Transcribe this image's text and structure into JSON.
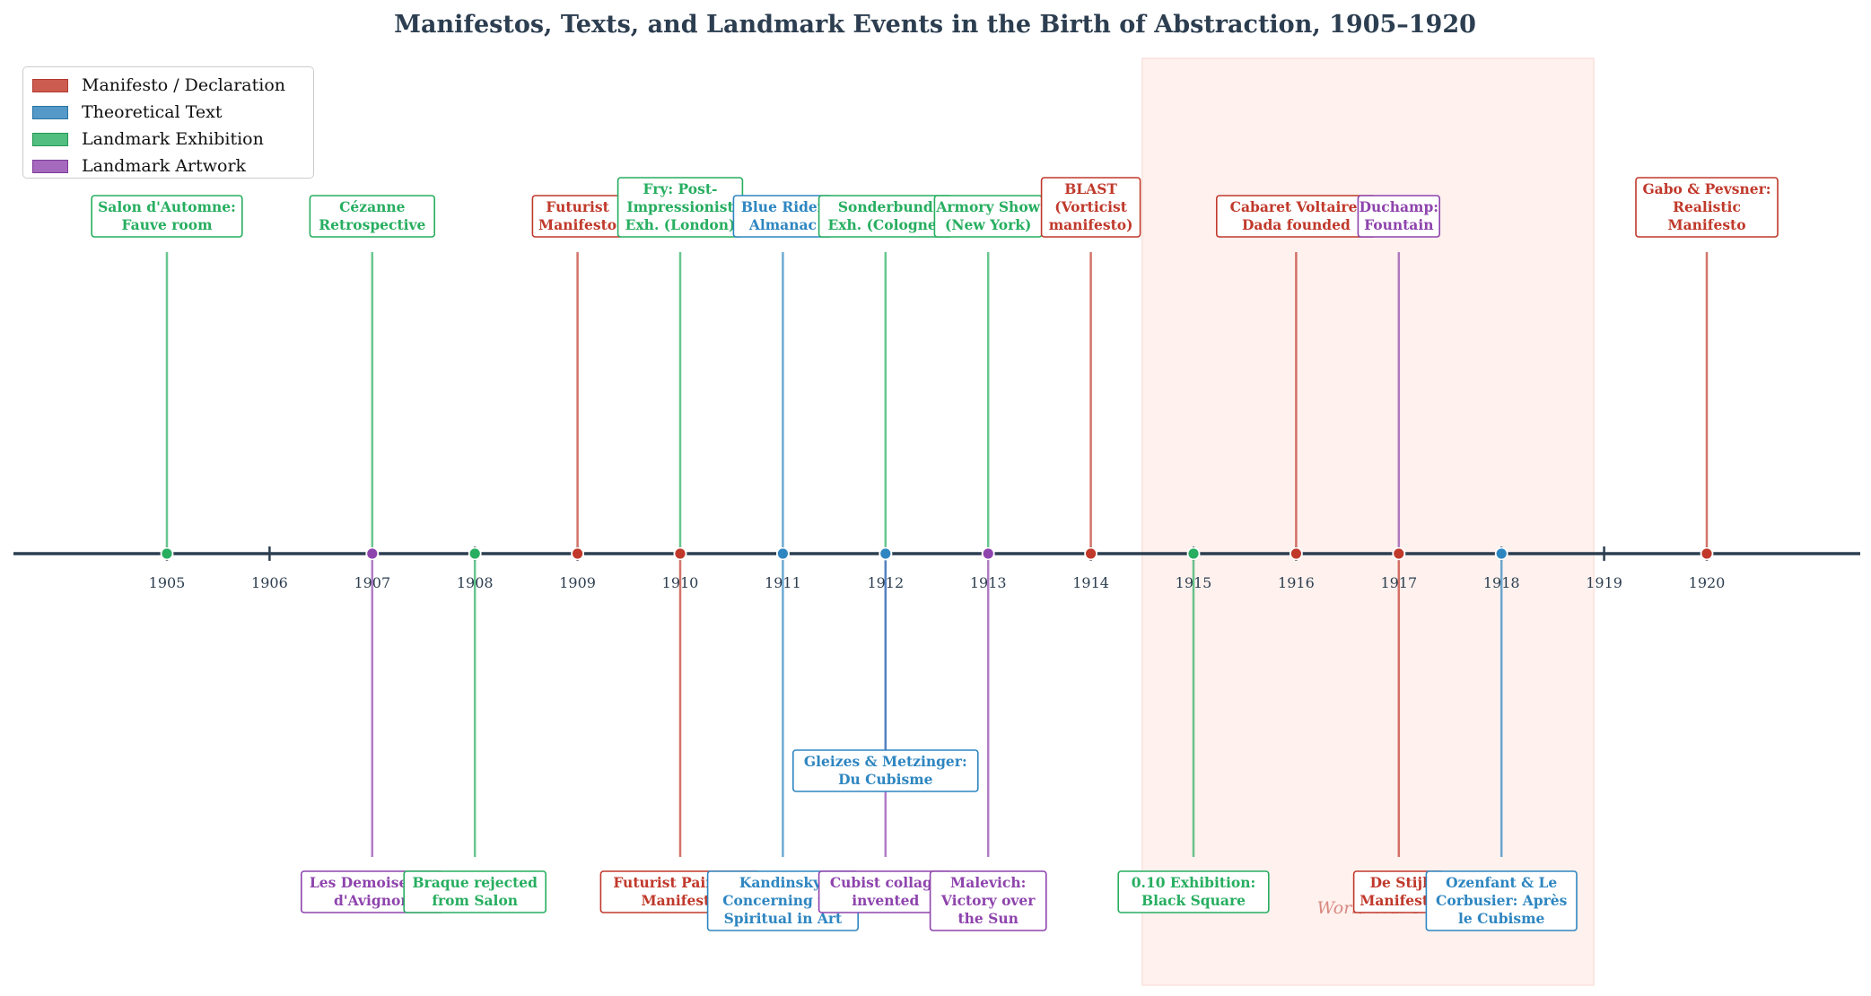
{
  "chart_data": {
    "type": "timeline",
    "title": "Manifestos, Texts, and Landmark Events in the Birth of Abstraction, 1905–1920",
    "x_range": [
      1903.5,
      1921.5
    ],
    "ticks": [
      1905,
      1906,
      1907,
      1908,
      1909,
      1910,
      1911,
      1912,
      1913,
      1914,
      1915,
      1916,
      1917,
      1918,
      1919,
      1920
    ],
    "shaded_period": {
      "start": 1914.5,
      "end": 1918.9,
      "label": "World War I"
    },
    "categories": [
      {
        "key": "manifesto",
        "name": "Manifesto / Declaration",
        "color": "#c0392b"
      },
      {
        "key": "text",
        "name": "Theoretical Text",
        "color": "#2e86c1"
      },
      {
        "key": "exhibition",
        "name": "Landmark Exhibition",
        "color": "#27ae60"
      },
      {
        "key": "artwork",
        "name": "Landmark Artwork",
        "color": "#8e44ad"
      }
    ],
    "events": [
      {
        "year": 1905,
        "label": "Salon d'Automne:\nFauve room",
        "category": "exhibition",
        "side": "above"
      },
      {
        "year": 1907,
        "label": "Cézanne\nRetrospective",
        "category": "exhibition",
        "side": "above"
      },
      {
        "year": 1909,
        "label": "Futurist\nManifesto",
        "category": "manifesto",
        "side": "above"
      },
      {
        "year": 1910,
        "label": "Fry: Post-\nImpressionist\nExh. (London)",
        "category": "exhibition",
        "side": "above"
      },
      {
        "year": 1911,
        "label": "Blue Rider\nAlmanac",
        "category": "text",
        "side": "above"
      },
      {
        "year": 1912,
        "label": "Sonderbund\nExh. (Cologne)",
        "category": "exhibition",
        "side": "above"
      },
      {
        "year": 1913,
        "label": "Armory Show\n(New York)",
        "category": "exhibition",
        "side": "above"
      },
      {
        "year": 1914,
        "label": "BLAST\n(Vorticist\nmanifesto)",
        "category": "manifesto",
        "side": "above"
      },
      {
        "year": 1916,
        "label": "Cabaret Voltaire:\nDada founded",
        "category": "manifesto",
        "side": "above"
      },
      {
        "year": 1917,
        "label": "Duchamp:\nFountain",
        "category": "artwork",
        "side": "above"
      },
      {
        "year": 1920,
        "label": "Gabo & Pevsner:\nRealistic\nManifesto",
        "category": "manifesto",
        "side": "above"
      },
      {
        "year": 1907,
        "label": "Les Demoiselles\nd'Avignon",
        "category": "artwork",
        "side": "below"
      },
      {
        "year": 1908,
        "label": "Braque rejected\nfrom Salon",
        "category": "exhibition",
        "side": "below"
      },
      {
        "year": 1910,
        "label": "Futurist Painting\nManifesto",
        "category": "manifesto",
        "side": "below"
      },
      {
        "year": 1911,
        "label": "Kandinsky:\nConcerning the\nSpiritual in Art",
        "category": "text",
        "side": "below"
      },
      {
        "year": 1912,
        "label": "Cubist collage\ninvented",
        "category": "artwork",
        "side": "below"
      },
      {
        "year": 1912,
        "label": "Gleizes & Metzinger:\nDu Cubisme",
        "category": "text",
        "side": "below-mid"
      },
      {
        "year": 1913,
        "label": "Malevich:\nVictory over\nthe Sun",
        "category": "artwork",
        "side": "below"
      },
      {
        "year": 1915,
        "label": "0.10 Exhibition:\nBlack Square",
        "category": "exhibition",
        "side": "below"
      },
      {
        "year": 1917,
        "label": "De Stijl\nManifesto",
        "category": "manifesto",
        "side": "below"
      },
      {
        "year": 1918,
        "label": "Ozenfant & Le\nCorbusier: Après\nle Cubisme",
        "category": "text",
        "side": "below"
      }
    ],
    "legend_position": "upper-left",
    "grid": false
  },
  "colors": {
    "axis": "#2c3e50",
    "title": "#2c3e50",
    "shade": "#fdebe7",
    "shade_label": "#d98880"
  }
}
